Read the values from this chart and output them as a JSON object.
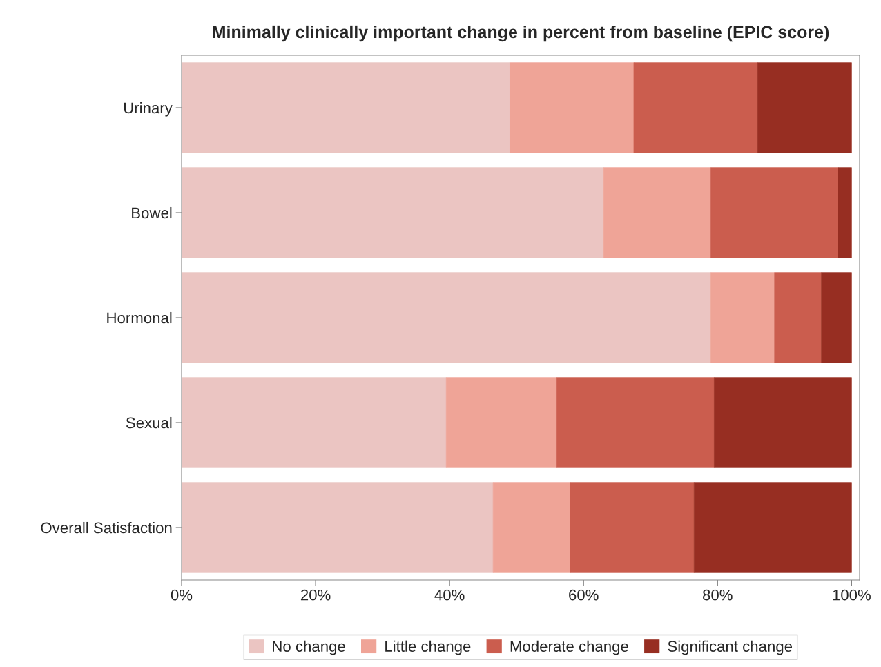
{
  "chart_data": {
    "type": "bar",
    "orientation": "horizontal",
    "stacked": true,
    "title": "Minimally clinically important change in percent from baseline (EPIC score)",
    "categories": [
      "Urinary",
      "Bowel",
      "Hormonal",
      "Sexual",
      "Overall Satisfaction"
    ],
    "series": [
      {
        "name": "No change",
        "color": "#ebc5c2",
        "values": [
          49,
          63,
          79,
          39.5,
          46.5
        ]
      },
      {
        "name": "Little change",
        "color": "#efa497",
        "values": [
          18.5,
          16,
          9.5,
          16.5,
          11.5
        ]
      },
      {
        "name": "Moderate change",
        "color": "#cb5d4e",
        "values": [
          18.5,
          19,
          7,
          23.5,
          18.5
        ]
      },
      {
        "name": "Significant change",
        "color": "#972e22",
        "values": [
          14,
          2,
          4.5,
          20.5,
          23.5
        ]
      }
    ],
    "xlim": [
      0,
      101.2
    ],
    "xticks": [
      {
        "value": 0,
        "label": "0%"
      },
      {
        "value": 20,
        "label": "20%"
      },
      {
        "value": 40,
        "label": "40%"
      },
      {
        "value": 60,
        "label": "60%"
      },
      {
        "value": 80,
        "label": "80%"
      },
      {
        "value": 100,
        "label": "100%"
      }
    ],
    "legend": "bottom",
    "grid": false
  }
}
